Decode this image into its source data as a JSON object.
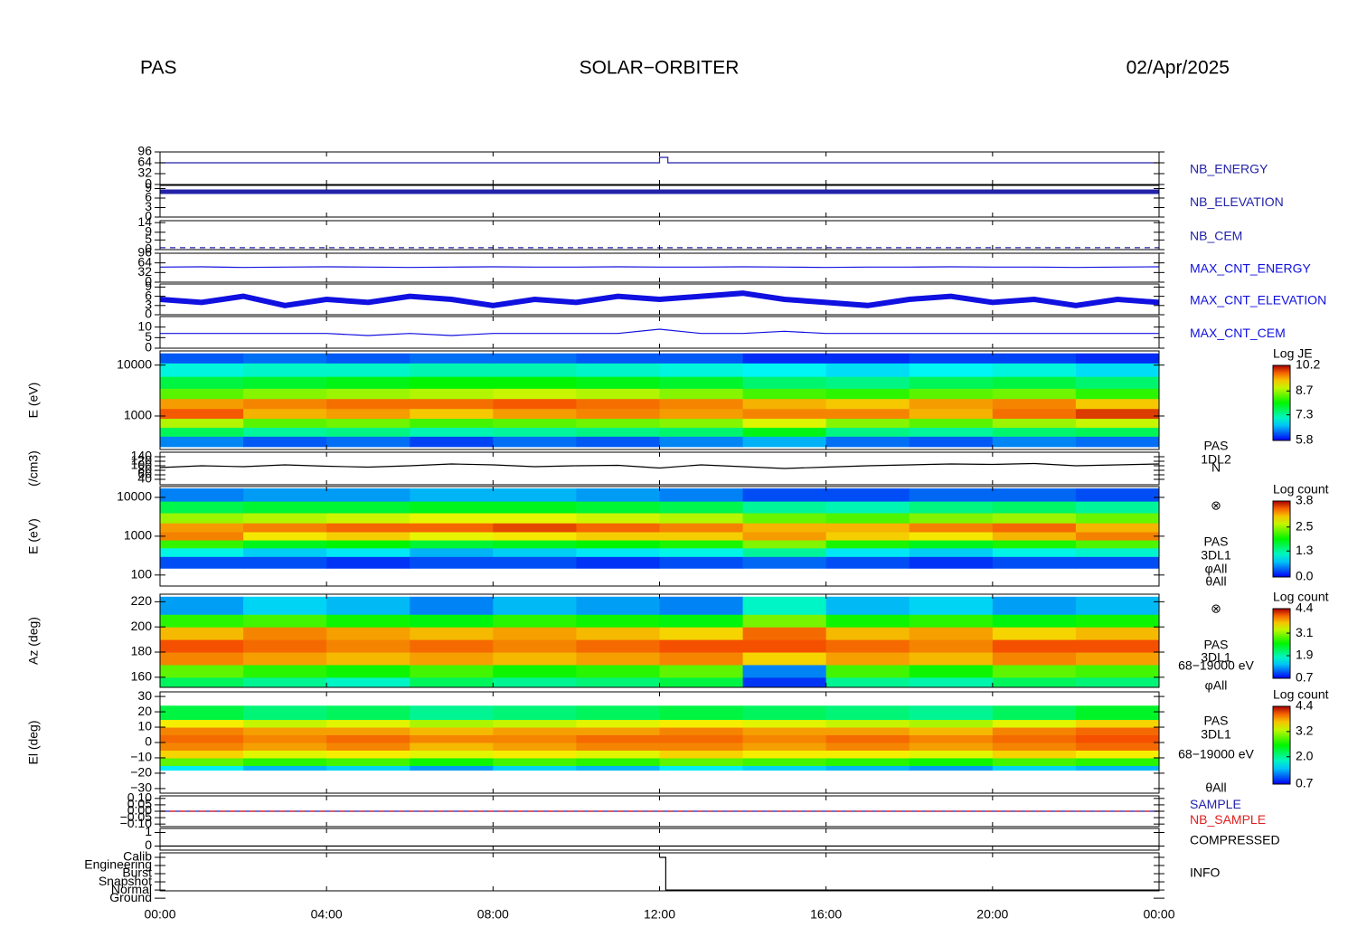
{
  "header": {
    "left": "PAS",
    "center": "SOLAR−ORBITER",
    "right": "02/Apr/2025"
  },
  "time_axis": {
    "xlim": [
      0,
      24
    ],
    "xticks": [
      {
        "value": 0,
        "label": "00:00"
      },
      {
        "value": 4,
        "label": "04:00"
      },
      {
        "value": 8,
        "label": "08:00"
      },
      {
        "value": 12,
        "label": "12:00"
      },
      {
        "value": 16,
        "label": "16:00"
      },
      {
        "value": 20,
        "label": "20:00"
      },
      {
        "value": 24,
        "label": "00:00"
      }
    ]
  },
  "chart_data": [
    {
      "type": "line",
      "ylim": [
        0,
        96
      ],
      "yticks": [
        0,
        32,
        64,
        96
      ],
      "x": [
        0,
        12,
        12,
        12.2,
        12.2,
        24
      ],
      "series": [
        {
          "name": "NB_ENERGY",
          "color": "#2222aa",
          "values": [
            64,
            64,
            80,
            80,
            64,
            64
          ]
        }
      ]
    },
    {
      "type": "line",
      "ylim": [
        0,
        10
      ],
      "yticks": [
        0,
        3,
        6,
        9
      ],
      "x": [
        0,
        24
      ],
      "series": [
        {
          "name": "NB_ELEVATION",
          "color": "#2222aa",
          "values": [
            8,
            8
          ]
        }
      ]
    },
    {
      "type": "line",
      "ylim": [
        0,
        15
      ],
      "yticks": [
        0,
        5,
        9,
        14
      ],
      "x": [
        0,
        24
      ],
      "series": [
        {
          "name": "NB_CEM",
          "color": "#2222aa",
          "dashed": true,
          "values": [
            1,
            1
          ]
        }
      ]
    },
    {
      "type": "line",
      "ylim": [
        0,
        96
      ],
      "yticks": [
        0,
        32,
        64,
        96
      ],
      "x": [
        0,
        1,
        2,
        3,
        4,
        5,
        6,
        7,
        8,
        9,
        10,
        11,
        12,
        13,
        14,
        15,
        16,
        17,
        18,
        19,
        20,
        21,
        22,
        23,
        24
      ],
      "series": [
        {
          "name": "MAX_CNT_ENERGY",
          "color": "#1010e0",
          "values": [
            50,
            51,
            49,
            50,
            51,
            50,
            49,
            50,
            51,
            50,
            50,
            51,
            50,
            50,
            51,
            50,
            49,
            50,
            50,
            51,
            50,
            50,
            49,
            50,
            51
          ]
        }
      ]
    },
    {
      "type": "line",
      "ylim": [
        0,
        10
      ],
      "yticks": [
        0,
        3,
        6,
        9
      ],
      "x": [
        0,
        1,
        2,
        3,
        4,
        5,
        6,
        7,
        8,
        9,
        10,
        11,
        12,
        13,
        14,
        15,
        16,
        17,
        18,
        19,
        20,
        21,
        22,
        23,
        24
      ],
      "series": [
        {
          "name": "MAX_CNT_ELEVATION",
          "color": "#1010e0",
          "values": [
            5,
            4,
            6,
            3,
            5,
            4,
            6,
            5,
            3,
            5,
            4,
            6,
            5,
            6,
            7,
            5,
            4,
            3,
            5,
            6,
            4,
            5,
            3,
            5,
            4
          ]
        }
      ]
    },
    {
      "type": "line",
      "ylim": [
        0,
        15
      ],
      "yticks": [
        0,
        5,
        10
      ],
      "x": [
        0,
        1,
        2,
        3,
        4,
        5,
        6,
        7,
        8,
        9,
        10,
        11,
        12,
        13,
        14,
        15,
        16,
        17,
        18,
        19,
        20,
        21,
        22,
        23,
        24
      ],
      "series": [
        {
          "name": "MAX_CNT_CEM",
          "color": "#1010e0",
          "values": [
            7,
            7,
            7,
            7,
            7,
            6,
            7,
            6,
            7,
            7,
            7,
            7,
            9,
            7,
            7,
            8,
            7,
            7,
            7,
            7,
            7,
            7,
            7,
            7,
            7
          ]
        }
      ]
    },
    {
      "type": "spectrogram",
      "ylabel": "E (eV)",
      "log": true,
      "ylim": [
        220,
        19000
      ],
      "yticks": [
        1000,
        10000
      ],
      "xbins": [
        0,
        2,
        4,
        6,
        8,
        10,
        12,
        14,
        16,
        18,
        20,
        22,
        24
      ],
      "ybins": [
        250,
        400,
        600,
        900,
        1400,
        2200,
        3500,
        6000,
        11000,
        17000
      ],
      "values": [
        [
          6.4,
          6.2,
          6.3,
          6.1,
          6.3,
          6.2,
          6.4,
          6.6,
          6.3,
          6.2,
          6.4,
          6.3
        ],
        [
          7.6,
          7.3,
          7.4,
          7.2,
          7.3,
          7.4,
          7.5,
          7.9,
          7.4,
          7.3,
          7.5,
          7.6
        ],
        [
          8.8,
          8.4,
          8.5,
          8.3,
          8.4,
          8.5,
          8.6,
          9.0,
          8.6,
          8.4,
          8.7,
          8.9
        ],
        [
          9.8,
          9.4,
          9.5,
          9.3,
          9.5,
          9.6,
          9.5,
          9.6,
          9.6,
          9.4,
          9.7,
          9.9
        ],
        [
          9.5,
          9.6,
          9.7,
          9.7,
          9.8,
          9.7,
          9.6,
          9.4,
          9.3,
          9.5,
          9.6,
          9.3
        ],
        [
          8.4,
          8.6,
          8.7,
          8.8,
          8.9,
          8.8,
          8.6,
          8.3,
          8.2,
          8.4,
          8.5,
          8.2
        ],
        [
          7.7,
          7.8,
          7.9,
          8.0,
          8.0,
          7.9,
          7.8,
          7.5,
          7.4,
          7.6,
          7.7,
          7.5
        ],
        [
          7.0,
          7.1,
          7.1,
          7.2,
          7.2,
          7.1,
          7.0,
          6.9,
          6.8,
          6.9,
          7.0,
          6.8
        ],
        [
          6.2,
          6.3,
          6.2,
          6.3,
          6.3,
          6.2,
          6.2,
          6.0,
          6.0,
          6.1,
          6.1,
          6.0
        ]
      ],
      "colorbar_label": "Log JE",
      "zlim": [
        5.8,
        10.2
      ],
      "zticks": [
        5.8,
        7.3,
        8.7,
        10.2
      ],
      "labels": []
    },
    {
      "type": "line",
      "ylabel": "(/cm3)",
      "ylim": [
        16,
        160
      ],
      "yticks": [
        40,
        60,
        80,
        100,
        120,
        140
      ],
      "x": [
        0,
        1,
        2,
        3,
        4,
        5,
        6,
        7,
        8,
        9,
        10,
        11,
        12,
        13,
        14,
        15,
        16,
        17,
        18,
        19,
        20,
        21,
        22,
        23,
        24
      ],
      "series": [
        {
          "color": "#000000",
          "values": [
            92,
            100,
            96,
            104,
            98,
            94,
            100,
            108,
            104,
            96,
            100,
            102,
            90,
            104,
            96,
            88,
            94,
            100,
            104,
            108,
            106,
            110,
            100,
            104,
            108
          ]
        }
      ],
      "labels": [
        "PAS",
        "1DL2",
        "N"
      ]
    },
    {
      "type": "spectrogram",
      "ylabel": "E (eV)",
      "log": true,
      "ylim": [
        52,
        19000
      ],
      "yticks": [
        100,
        1000,
        10000
      ],
      "xbins": [
        0,
        2,
        4,
        6,
        8,
        10,
        12,
        14,
        16,
        18,
        20,
        22,
        24
      ],
      "ybins": [
        150,
        300,
        500,
        800,
        1300,
        2200,
        4000,
        8000,
        17000
      ],
      "values": [
        [
          0.3,
          0.3,
          0.2,
          0.3,
          0.3,
          0.2,
          0.3,
          0.4,
          0.3,
          0.2,
          0.3,
          0.3
        ],
        [
          1.0,
          0.8,
          0.9,
          0.7,
          0.8,
          0.9,
          1.0,
          1.3,
          0.9,
          0.8,
          1.0,
          1.1
        ],
        [
          2.1,
          1.8,
          1.9,
          1.7,
          1.8,
          1.9,
          2.0,
          2.4,
          2.0,
          1.8,
          2.0,
          2.2
        ],
        [
          3.3,
          2.9,
          3.0,
          2.8,
          2.9,
          3.0,
          3.0,
          3.2,
          3.0,
          2.9,
          3.1,
          3.3
        ],
        [
          3.2,
          3.3,
          3.4,
          3.4,
          3.5,
          3.4,
          3.3,
          3.1,
          3.1,
          3.3,
          3.4,
          3.1
        ],
        [
          2.5,
          2.6,
          2.7,
          2.8,
          2.8,
          2.7,
          2.6,
          2.3,
          2.2,
          2.4,
          2.5,
          2.3
        ],
        [
          1.6,
          1.7,
          1.7,
          1.8,
          1.8,
          1.7,
          1.6,
          1.3,
          1.2,
          1.4,
          1.5,
          1.3
        ],
        [
          0.5,
          0.6,
          0.6,
          0.7,
          0.7,
          0.6,
          0.5,
          0.3,
          0.3,
          0.4,
          0.4,
          0.3
        ]
      ],
      "colorbar_label": "Log count",
      "zlim": [
        0,
        3.8
      ],
      "zticks": [
        {
          "value": 0,
          "label": "0.0"
        },
        1.3,
        2.5,
        3.8
      ],
      "labels": [
        "⊗",
        "PAS",
        "3DL1",
        "φAll",
        "θAll"
      ]
    },
    {
      "type": "spectrogram",
      "ylabel": "Az (deg)",
      "ylim": [
        152,
        226
      ],
      "yticks": [
        160,
        180,
        200,
        220
      ],
      "xbins": [
        0,
        2,
        4,
        6,
        8,
        10,
        12,
        14,
        16,
        18,
        20,
        22,
        24
      ],
      "ybins": [
        152,
        160,
        170,
        180,
        190,
        200,
        210,
        224
      ],
      "values": [
        [
          2.2,
          2.0,
          1.8,
          2.2,
          2.0,
          2.1,
          2.3,
          0.9,
          2.0,
          1.9,
          2.2,
          2.1
        ],
        [
          2.9,
          2.7,
          2.6,
          2.8,
          2.6,
          2.7,
          2.9,
          1.2,
          2.8,
          2.6,
          2.9,
          2.8
        ],
        [
          3.9,
          3.8,
          3.7,
          3.8,
          3.7,
          3.8,
          3.9,
          3.6,
          3.8,
          3.7,
          3.9,
          3.8
        ],
        [
          4.1,
          4.0,
          3.9,
          4.0,
          3.9,
          4.0,
          4.1,
          4.1,
          4.0,
          3.9,
          4.1,
          4.1
        ],
        [
          3.7,
          3.9,
          3.8,
          3.7,
          3.8,
          3.7,
          3.6,
          4.0,
          3.7,
          3.8,
          3.6,
          3.7
        ],
        [
          2.7,
          2.8,
          2.6,
          2.5,
          2.7,
          2.6,
          2.5,
          3.0,
          2.6,
          2.7,
          2.5,
          2.6
        ],
        [
          1.3,
          1.5,
          1.4,
          1.2,
          1.4,
          1.3,
          1.2,
          1.8,
          1.4,
          1.5,
          1.3,
          1.4
        ]
      ],
      "colorbar_label": "Log count",
      "zlim": [
        0.7,
        4.4
      ],
      "zticks": [
        0.7,
        1.9,
        3.1,
        4.4
      ],
      "labels": [
        "⊗",
        "PAS",
        "3DL1",
        "68−19000 eV",
        "φAll"
      ]
    },
    {
      "type": "spectrogram",
      "ylabel": "El (deg)",
      "ylim": [
        -33,
        33
      ],
      "yticks": [
        {
          "value": -30,
          "label": "−30"
        },
        {
          "value": -20,
          "label": "−20"
        },
        {
          "value": -10,
          "label": "−10"
        },
        0,
        10,
        20,
        30
      ],
      "xbins": [
        0,
        2,
        4,
        6,
        8,
        10,
        12,
        14,
        16,
        18,
        20,
        22,
        24
      ],
      "ybins": [
        -18,
        -15,
        -10,
        -5,
        0,
        5,
        10,
        15,
        24
      ],
      "values": [
        [
          1.6,
          1.4,
          1.5,
          1.3,
          1.5,
          1.4,
          1.6,
          1.5,
          1.4,
          1.3,
          1.5,
          1.4
        ],
        [
          2.9,
          2.7,
          2.8,
          2.6,
          2.8,
          2.7,
          2.9,
          2.8,
          2.7,
          2.6,
          2.8,
          2.7
        ],
        [
          3.6,
          3.4,
          3.5,
          3.4,
          3.5,
          3.4,
          3.6,
          3.5,
          3.5,
          3.4,
          3.6,
          3.5
        ],
        [
          3.9,
          3.8,
          3.9,
          3.7,
          3.8,
          3.9,
          3.9,
          3.8,
          3.9,
          3.8,
          3.9,
          4.0
        ],
        [
          4.0,
          3.9,
          4.0,
          3.9,
          3.9,
          4.0,
          4.0,
          3.9,
          4.0,
          3.9,
          4.0,
          4.1
        ],
        [
          3.9,
          3.8,
          3.8,
          3.7,
          3.8,
          3.8,
          3.9,
          3.8,
          3.8,
          3.7,
          3.9,
          4.0
        ],
        [
          3.5,
          3.3,
          3.4,
          3.2,
          3.3,
          3.4,
          3.5,
          3.4,
          3.3,
          3.2,
          3.4,
          3.6
        ],
        [
          2.3,
          2.1,
          2.2,
          2.0,
          2.1,
          2.2,
          2.3,
          2.2,
          2.1,
          2.0,
          2.2,
          2.4
        ]
      ],
      "colorbar_label": "Log count",
      "zlim": [
        0.7,
        4.4
      ],
      "zticks": [
        0.7,
        {
          "value": 2.0,
          "label": "2.0"
        },
        3.2,
        4.4
      ],
      "labels": [
        "PAS",
        "3DL1",
        "68−19000 eV",
        "θAll"
      ]
    },
    {
      "type": "line",
      "ylim": [
        -0.12,
        0.12
      ],
      "yticks": [
        {
          "value": -0.1,
          "label": "−0.10"
        },
        {
          "value": -0.05,
          "label": "−0.05"
        },
        {
          "value": 0,
          "label": "0.00"
        },
        {
          "value": 0.05,
          "label": "0.05"
        },
        {
          "value": 0.1,
          "label": "0.10"
        }
      ],
      "x": [
        0,
        24
      ],
      "series": [
        {
          "name": "SAMPLE",
          "color": "#2222aa",
          "values": [
            0,
            0
          ]
        },
        {
          "name": "NB_SAMPLE",
          "color": "#e02020",
          "dashed": true,
          "values": [
            0,
            0
          ]
        }
      ]
    },
    {
      "type": "line",
      "ylim": [
        -0.3,
        1.3
      ],
      "yticks": [
        0,
        1
      ],
      "x": [
        0,
        24
      ],
      "series": [
        {
          "name": "COMPRESSED",
          "color": "#000000",
          "values": [
            0,
            0
          ]
        }
      ]
    },
    {
      "type": "line",
      "ylim": [
        0.9,
        5.55
      ],
      "yticks": [
        {
          "value": 5,
          "label": "Calib"
        },
        {
          "value": 4,
          "label": "Engineering"
        },
        {
          "value": 3,
          "label": "Burst"
        },
        {
          "value": 2,
          "label": "Snapshot"
        },
        {
          "value": 1,
          "label": "Normal"
        },
        {
          "value": 0,
          "label": "Ground"
        }
      ],
      "x": [
        12,
        12.15,
        12.15,
        24
      ],
      "series": [
        {
          "name": "INFO",
          "color": "#000000",
          "values": [
            5,
            5,
            1,
            1
          ]
        }
      ]
    }
  ]
}
